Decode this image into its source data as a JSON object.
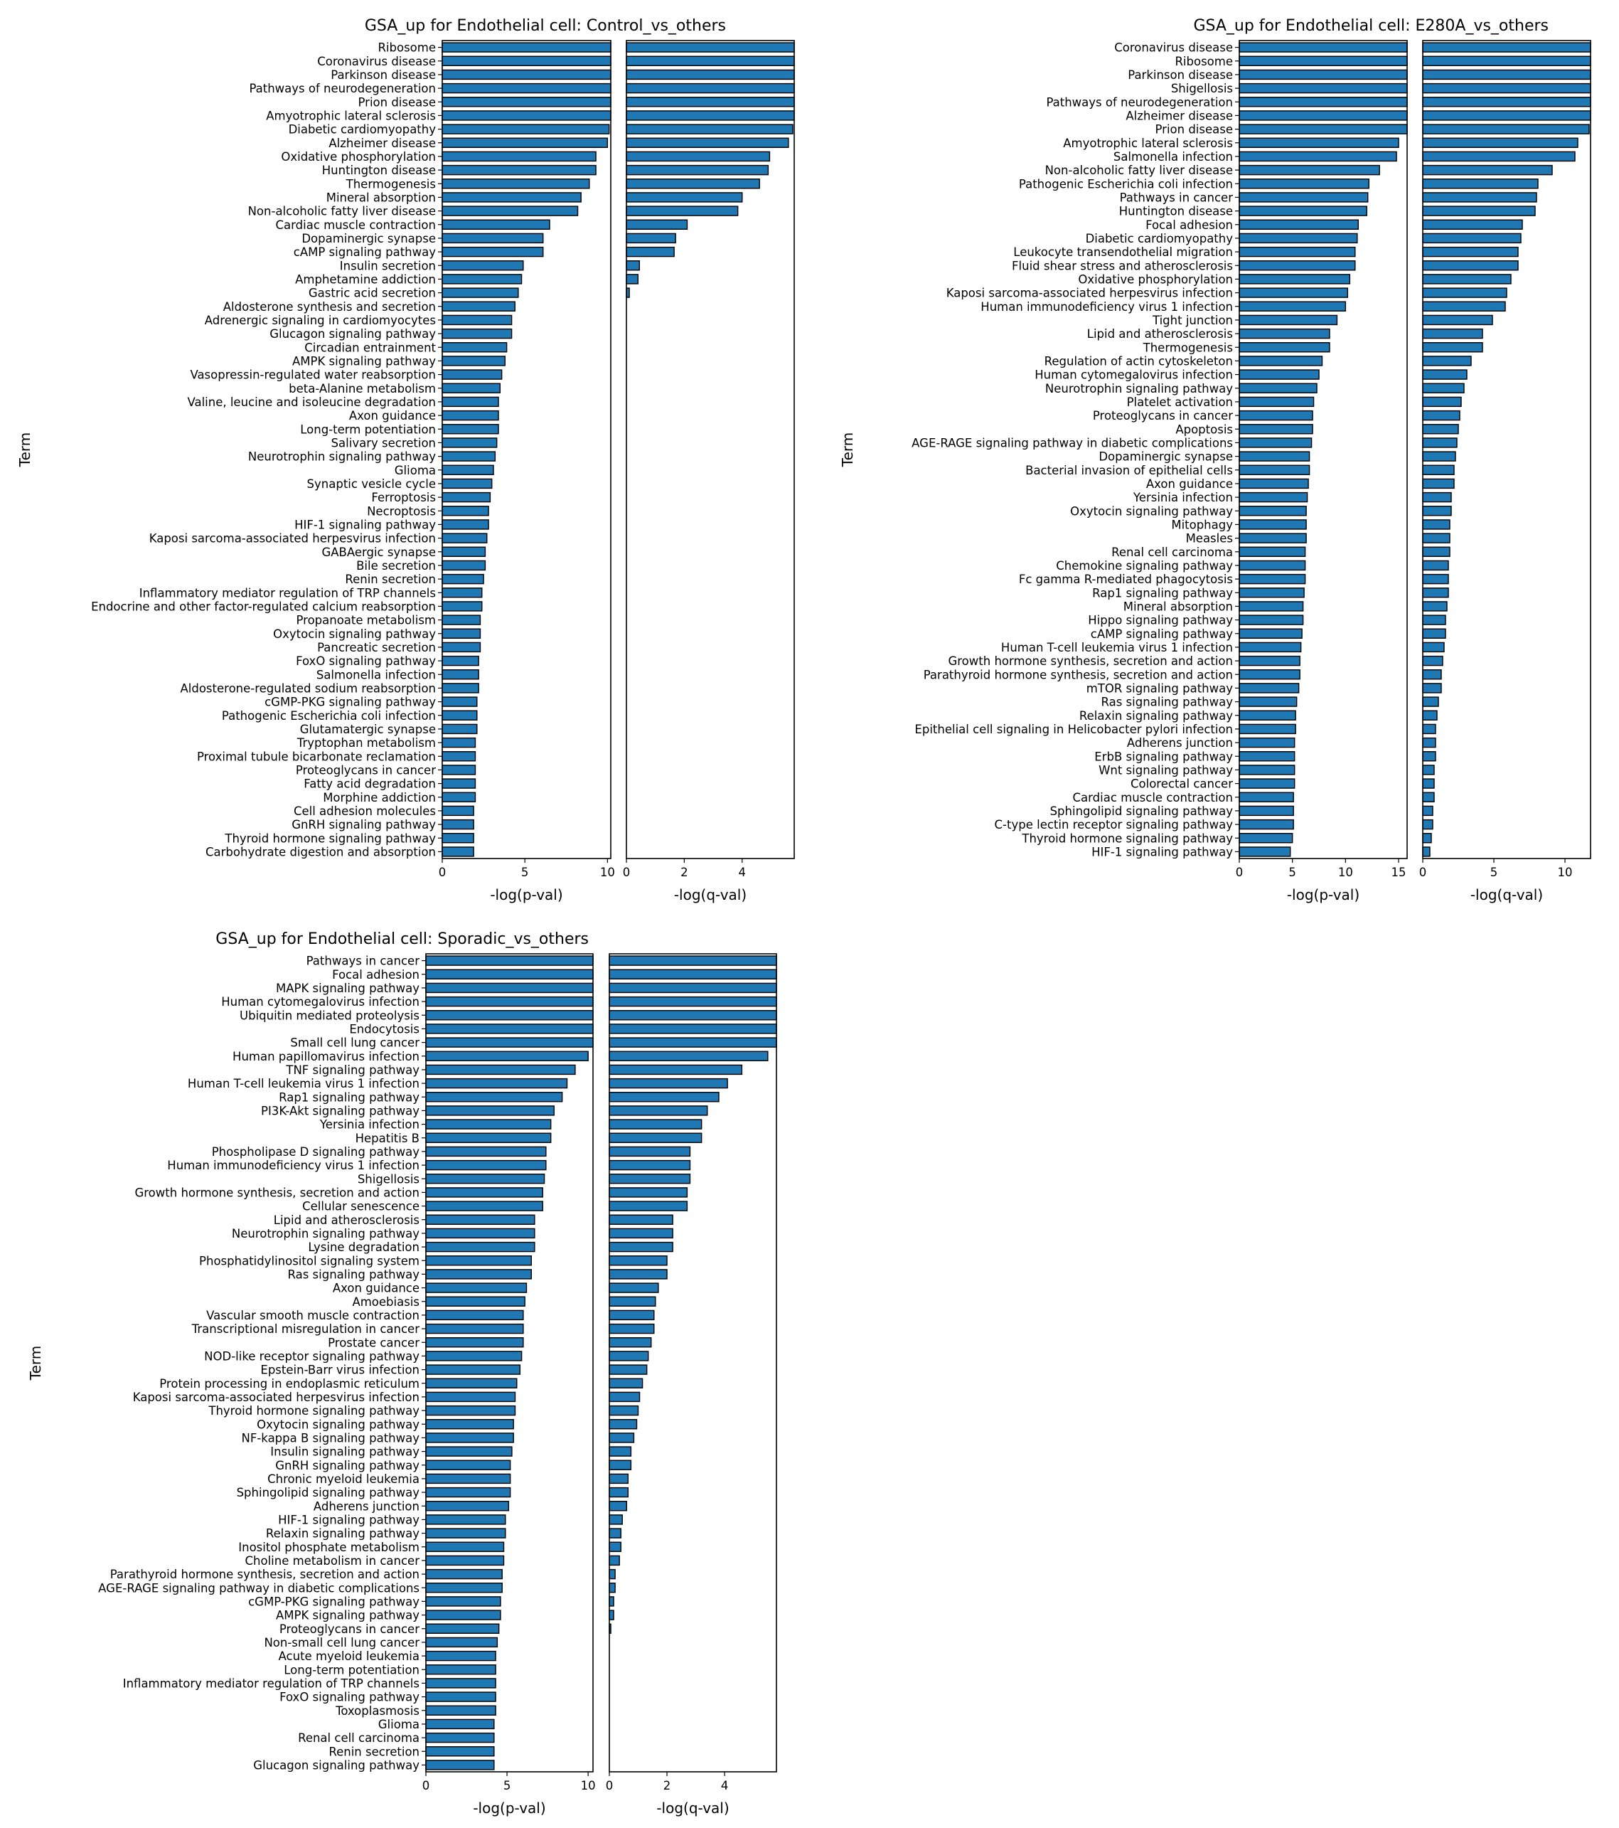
{
  "colors": {
    "bar": "#1f77b4",
    "edge": "#000000",
    "background": "#ffffff"
  },
  "chart_data": [
    {
      "type": "bar",
      "orientation": "horizontal",
      "title": "GSA_up for Endothelial cell: Control_vs_others",
      "ylabel": "Term",
      "grid": false,
      "categories": [
        "Ribosome",
        "Coronavirus disease",
        "Parkinson disease",
        "Pathways of neurodegeneration",
        "Prion disease",
        "Amyotrophic lateral sclerosis",
        "Diabetic cardiomyopathy",
        "Alzheimer disease",
        "Oxidative phosphorylation",
        "Huntington disease",
        "Thermogenesis",
        "Mineral absorption",
        "Non-alcoholic fatty liver disease",
        "Cardiac muscle contraction",
        "Dopaminergic synapse",
        "cAMP signaling pathway",
        "Insulin secretion",
        "Amphetamine addiction",
        "Gastric acid secretion",
        "Aldosterone synthesis and secretion",
        "Adrenergic signaling in cardiomyocytes",
        "Glucagon signaling pathway",
        "Circadian entrainment",
        "AMPK signaling pathway",
        "Vasopressin-regulated water reabsorption",
        "beta-Alanine metabolism",
        "Valine, leucine and isoleucine degradation",
        "Axon guidance",
        "Long-term potentiation",
        "Salivary secretion",
        "Neurotrophin signaling pathway",
        "Glioma",
        "Synaptic vesicle cycle",
        "Ferroptosis",
        "Necroptosis",
        "HIF-1 signaling pathway",
        "Kaposi sarcoma-associated herpesvirus infection",
        "GABAergic synapse",
        "Bile secretion",
        "Renin secretion",
        "Inflammatory mediator regulation of TRP channels",
        "Endocrine and other factor-regulated calcium reabsorption",
        "Propanoate metabolism",
        "Oxytocin signaling pathway",
        "Pancreatic secretion",
        "FoxO signaling pathway",
        "Salmonella infection",
        "Aldosterone-regulated sodium reabsorption",
        "cGMP-PKG signaling pathway",
        "Pathogenic Escherichia coli infection",
        "Glutamatergic synapse",
        "Tryptophan metabolism",
        "Proximal tubule bicarbonate reclamation",
        "Proteoglycans in cancer",
        "Fatty acid degradation",
        "Morphine addiction",
        "Cell adhesion molecules",
        "GnRH signaling pathway",
        "Thyroid hormone signaling pathway",
        "Carbohydrate digestion and absorption"
      ],
      "panels": [
        {
          "xlabel": "-log(p-val)",
          "xlim": [
            0,
            10.2
          ],
          "xticks": [
            0,
            5,
            10
          ],
          "values": [
            10.2,
            10.2,
            10.2,
            10.2,
            10.2,
            10.2,
            10.1,
            10.0,
            9.3,
            9.3,
            8.9,
            8.4,
            8.2,
            6.5,
            6.1,
            6.1,
            4.9,
            4.8,
            4.6,
            4.4,
            4.2,
            4.2,
            3.9,
            3.8,
            3.6,
            3.5,
            3.4,
            3.4,
            3.4,
            3.3,
            3.2,
            3.1,
            3.0,
            2.9,
            2.8,
            2.8,
            2.7,
            2.6,
            2.6,
            2.5,
            2.4,
            2.4,
            2.3,
            2.3,
            2.3,
            2.2,
            2.2,
            2.2,
            2.1,
            2.1,
            2.1,
            2.0,
            2.0,
            2.0,
            2.0,
            2.0,
            1.9,
            1.9,
            1.9,
            1.9
          ]
        },
        {
          "xlabel": "-log(q-val)",
          "xlim": [
            0,
            5.8
          ],
          "xticks": [
            0,
            2,
            4
          ],
          "values": [
            5.8,
            5.8,
            5.8,
            5.8,
            5.8,
            5.8,
            5.75,
            5.6,
            4.95,
            4.9,
            4.6,
            4.0,
            3.85,
            2.1,
            1.7,
            1.65,
            0.45,
            0.4,
            0.1,
            0,
            0,
            0,
            0,
            0,
            0,
            0,
            0,
            0,
            0,
            0,
            0,
            0,
            0,
            0,
            0,
            0,
            0,
            0,
            0,
            0,
            0,
            0,
            0,
            0,
            0,
            0,
            0,
            0,
            0,
            0,
            0,
            0,
            0,
            0,
            0,
            0,
            0,
            0,
            0,
            0
          ]
        }
      ]
    },
    {
      "type": "bar",
      "orientation": "horizontal",
      "title": "GSA_up for Endothelial cell: E280A_vs_others",
      "ylabel": "Term",
      "grid": false,
      "categories": [
        "Coronavirus disease",
        "Ribosome",
        "Parkinson disease",
        "Shigellosis",
        "Pathways of neurodegeneration",
        "Alzheimer disease",
        "Prion disease",
        "Amyotrophic lateral sclerosis",
        "Salmonella infection",
        "Non-alcoholic fatty liver disease",
        "Pathogenic Escherichia coli infection",
        "Pathways in cancer",
        "Huntington disease",
        "Focal adhesion",
        "Diabetic cardiomyopathy",
        "Leukocyte transendothelial migration",
        "Fluid shear stress and atherosclerosis",
        "Oxidative phosphorylation",
        "Kaposi sarcoma-associated herpesvirus infection",
        "Human immunodeficiency virus 1 infection",
        "Tight junction",
        "Lipid and atherosclerosis",
        "Thermogenesis",
        "Regulation of actin cytoskeleton",
        "Human cytomegalovirus infection",
        "Neurotrophin signaling pathway",
        "Platelet activation",
        "Proteoglycans in cancer",
        "Apoptosis",
        "AGE-RAGE signaling pathway in diabetic complications",
        "Dopaminergic synapse",
        "Bacterial invasion of epithelial cells",
        "Axon guidance",
        "Yersinia infection",
        "Oxytocin signaling pathway",
        "Mitophagy",
        "Measles",
        "Renal cell carcinoma",
        "Chemokine signaling pathway",
        "Fc gamma R-mediated phagocytosis",
        "Rap1 signaling pathway",
        "Mineral absorption",
        "Hippo signaling pathway",
        "cAMP signaling pathway",
        "Human T-cell leukemia virus 1 infection",
        "Growth hormone synthesis, secretion and action",
        "Parathyroid hormone synthesis, secretion and action",
        "mTOR signaling pathway",
        "Ras signaling pathway",
        "Relaxin signaling pathway",
        "Epithelial cell signaling in Helicobacter pylori infection",
        "Adherens junction",
        "ErbB signaling pathway",
        "Wnt signaling pathway",
        "Colorectal cancer",
        "Cardiac muscle contraction",
        "Sphingolipid signaling pathway",
        "C-type lectin receptor signaling pathway",
        "Thyroid hormone signaling pathway",
        "HIF-1 signaling pathway"
      ],
      "panels": [
        {
          "xlabel": "-log(p-val)",
          "xlim": [
            0,
            15.8
          ],
          "xticks": [
            0,
            5,
            10,
            15
          ],
          "values": [
            15.8,
            15.8,
            15.8,
            15.8,
            15.8,
            15.8,
            15.8,
            15.0,
            14.8,
            13.2,
            12.2,
            12.1,
            12.0,
            11.2,
            11.1,
            10.9,
            10.9,
            10.4,
            10.2,
            10.0,
            9.2,
            8.5,
            8.5,
            7.8,
            7.5,
            7.3,
            7.0,
            6.9,
            6.9,
            6.8,
            6.6,
            6.6,
            6.5,
            6.4,
            6.3,
            6.3,
            6.3,
            6.2,
            6.2,
            6.2,
            6.1,
            6.0,
            6.0,
            5.9,
            5.8,
            5.7,
            5.7,
            5.6,
            5.4,
            5.3,
            5.3,
            5.2,
            5.2,
            5.2,
            5.2,
            5.1,
            5.1,
            5.1,
            5.0,
            4.8
          ]
        },
        {
          "xlabel": "-log(q-val)",
          "xlim": [
            0,
            11.8
          ],
          "xticks": [
            0,
            5,
            10
          ],
          "values": [
            11.8,
            11.8,
            11.8,
            11.8,
            11.8,
            11.8,
            11.7,
            10.9,
            10.7,
            9.1,
            8.1,
            8.0,
            7.9,
            7.0,
            6.9,
            6.7,
            6.7,
            6.2,
            5.9,
            5.8,
            4.9,
            4.2,
            4.2,
            3.4,
            3.1,
            2.9,
            2.7,
            2.6,
            2.5,
            2.4,
            2.3,
            2.2,
            2.2,
            2.0,
            2.0,
            1.9,
            1.9,
            1.9,
            1.8,
            1.8,
            1.8,
            1.7,
            1.6,
            1.6,
            1.5,
            1.4,
            1.3,
            1.3,
            1.1,
            1.0,
            0.9,
            0.9,
            0.9,
            0.8,
            0.8,
            0.8,
            0.7,
            0.7,
            0.6,
            0.5
          ]
        }
      ]
    },
    {
      "type": "bar",
      "orientation": "horizontal",
      "title": "GSA_up for Endothelial cell: Sporadic_vs_others",
      "ylabel": "Term",
      "grid": false,
      "categories": [
        "Pathways in cancer",
        "Focal adhesion",
        "MAPK signaling pathway",
        "Human cytomegalovirus infection",
        "Ubiquitin mediated proteolysis",
        "Endocytosis",
        "Small cell lung cancer",
        "Human papillomavirus infection",
        "TNF signaling pathway",
        "Human T-cell leukemia virus 1 infection",
        "Rap1 signaling pathway",
        "PI3K-Akt signaling pathway",
        "Yersinia infection",
        "Hepatitis B",
        "Phospholipase D signaling pathway",
        "Human immunodeficiency virus 1 infection",
        "Shigellosis",
        "Growth hormone synthesis, secretion and action",
        "Cellular senescence",
        "Lipid and atherosclerosis",
        "Neurotrophin signaling pathway",
        "Lysine degradation",
        "Phosphatidylinositol signaling system",
        "Ras signaling pathway",
        "Axon guidance",
        "Amoebiasis",
        "Vascular smooth muscle contraction",
        "Transcriptional misregulation in cancer",
        "Prostate cancer",
        "NOD-like receptor signaling pathway",
        "Epstein-Barr virus infection",
        "Protein processing in endoplasmic reticulum",
        "Kaposi sarcoma-associated herpesvirus infection",
        "Thyroid hormone signaling pathway",
        "Oxytocin signaling pathway",
        "NF-kappa B signaling pathway",
        "Insulin signaling pathway",
        "GnRH signaling pathway",
        "Chronic myeloid leukemia",
        "Sphingolipid signaling pathway",
        "Adherens junction",
        "HIF-1 signaling pathway",
        "Relaxin signaling pathway",
        "Inositol phosphate metabolism",
        "Choline metabolism in cancer",
        "Parathyroid hormone synthesis, secretion and action",
        "AGE-RAGE signaling pathway in diabetic complications",
        "cGMP-PKG signaling pathway",
        "AMPK signaling pathway",
        "Proteoglycans in cancer",
        "Non-small cell lung cancer",
        "Acute myeloid leukemia",
        "Long-term potentiation",
        "Inflammatory mediator regulation of TRP channels",
        "FoxO signaling pathway",
        "Toxoplasmosis",
        "Glioma",
        "Renal cell carcinoma",
        "Renin secretion",
        "Glucagon signaling pathway"
      ],
      "panels": [
        {
          "xlabel": "-log(p-val)",
          "xlim": [
            0,
            10.3
          ],
          "xticks": [
            0,
            5,
            10
          ],
          "values": [
            10.3,
            10.3,
            10.3,
            10.3,
            10.3,
            10.3,
            10.3,
            10.0,
            9.2,
            8.7,
            8.4,
            7.9,
            7.7,
            7.7,
            7.4,
            7.4,
            7.3,
            7.2,
            7.2,
            6.7,
            6.7,
            6.7,
            6.5,
            6.5,
            6.2,
            6.1,
            6.0,
            6.0,
            6.0,
            5.9,
            5.8,
            5.6,
            5.5,
            5.5,
            5.4,
            5.4,
            5.3,
            5.2,
            5.2,
            5.2,
            5.1,
            4.9,
            4.9,
            4.8,
            4.8,
            4.7,
            4.7,
            4.6,
            4.6,
            4.5,
            4.4,
            4.3,
            4.3,
            4.3,
            4.3,
            4.3,
            4.2,
            4.2,
            4.2,
            4.2
          ]
        },
        {
          "xlabel": "-log(q-val)",
          "xlim": [
            0,
            5.8
          ],
          "xticks": [
            0,
            2,
            4
          ],
          "values": [
            5.8,
            5.8,
            5.8,
            5.8,
            5.8,
            5.8,
            5.8,
            5.5,
            4.6,
            4.1,
            3.8,
            3.4,
            3.2,
            3.2,
            2.8,
            2.8,
            2.8,
            2.7,
            2.7,
            2.2,
            2.2,
            2.2,
            2.0,
            2.0,
            1.7,
            1.6,
            1.55,
            1.55,
            1.45,
            1.35,
            1.3,
            1.15,
            1.05,
            1.0,
            0.95,
            0.85,
            0.75,
            0.75,
            0.65,
            0.65,
            0.6,
            0.45,
            0.4,
            0.4,
            0.35,
            0.2,
            0.2,
            0.15,
            0.15,
            0.05,
            0,
            0,
            0,
            0,
            0,
            0,
            0,
            0,
            0,
            0
          ]
        }
      ]
    }
  ]
}
